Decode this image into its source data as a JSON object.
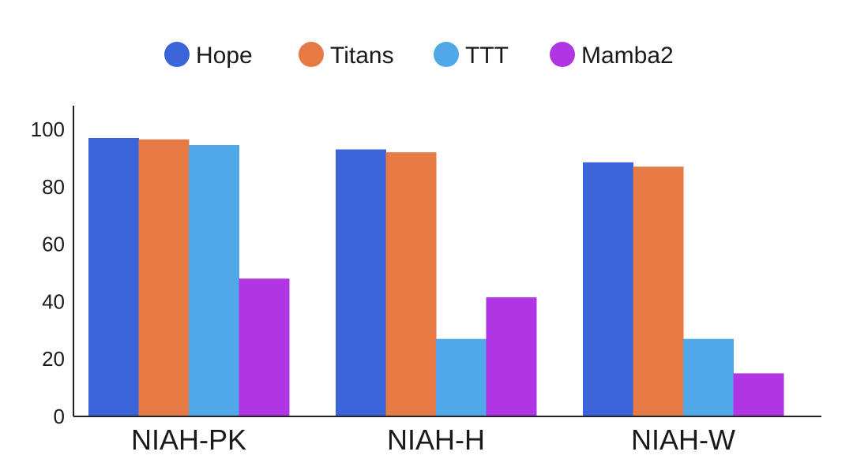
{
  "chart_data": {
    "type": "bar",
    "title": "",
    "xlabel": "",
    "ylabel": "",
    "categories": [
      "NIAH-PK",
      "NIAH-H",
      "NIAH-W"
    ],
    "series": [
      {
        "name": "Hope",
        "color": "#3a64d8",
        "values": [
          97,
          93,
          88.5
        ]
      },
      {
        "name": "Titans",
        "color": "#e57a45",
        "values": [
          96.5,
          92,
          87
        ]
      },
      {
        "name": "TTT",
        "color": "#4fa8e8",
        "values": [
          94.5,
          27,
          27
        ]
      },
      {
        "name": "Mamba2",
        "color": "#b035e3",
        "values": [
          48,
          41.5,
          15
        ]
      }
    ],
    "ylim": [
      0,
      100
    ],
    "yticks": [
      0,
      20,
      40,
      60,
      80,
      100
    ],
    "grid": false,
    "legend_position": "top-center"
  }
}
